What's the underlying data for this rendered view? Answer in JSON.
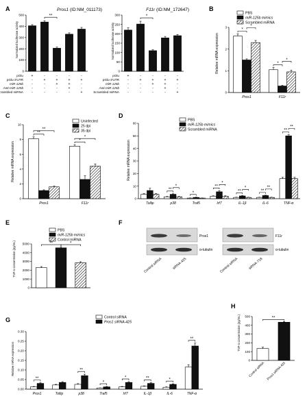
{
  "chart_data": [
    {
      "panel": "A",
      "type": "bar",
      "title_gene": "Pros1",
      "title_id": "(ID:NM_011173)",
      "ylabel": "Normalized luciferase activity",
      "ylim": [
        0,
        500
      ],
      "yticks": [
        0,
        100,
        200,
        300,
        400,
        500
      ],
      "values": [
        405,
        438,
        205,
        330,
        375
      ],
      "errors": [
        10,
        12,
        10,
        12,
        15
      ],
      "row_labels": [
        "pGlu",
        "pGlu-3'UTR",
        "miR-125b",
        "Anti-miR-125b",
        "Scrambled miRNA"
      ],
      "matrix": [
        [
          "+",
          "-",
          "-",
          "-",
          "-"
        ],
        [
          "-",
          "+",
          "+",
          "+",
          "+"
        ],
        [
          "-",
          "-",
          "+",
          "+",
          "-"
        ],
        [
          "-",
          "-",
          "-",
          "+",
          "-"
        ],
        [
          "-",
          "-",
          "-",
          "-",
          "+"
        ]
      ],
      "sig": [
        {
          "from": 1,
          "to": 2,
          "label": "**"
        }
      ]
    },
    {
      "panel": "",
      "type": "bar",
      "title_gene": "F11r",
      "title_id": "(ID:NM_172647)",
      "ylabel": "Normalized luciferase activity",
      "ylim": [
        0,
        300
      ],
      "yticks": [
        0,
        50,
        100,
        150,
        200,
        250,
        300
      ],
      "values": [
        220,
        252,
        110,
        178,
        190
      ],
      "errors": [
        12,
        15,
        5,
        8,
        6
      ],
      "row_labels": [
        "pGlu",
        "pGlu-3'UTR",
        "miR-125b",
        "Anti-miR-125b",
        "Scrambled miRNA"
      ],
      "matrix": [
        [
          "+",
          "-",
          "-",
          "-",
          "-"
        ],
        [
          "-",
          "+",
          "+",
          "+",
          "+"
        ],
        [
          "-",
          "-",
          "+",
          "+",
          "-"
        ],
        [
          "-",
          "-",
          "-",
          "+",
          "-"
        ],
        [
          "-",
          "-",
          "-",
          "-",
          "+"
        ]
      ],
      "sig": [
        {
          "from": 1,
          "to": 2,
          "label": "*"
        }
      ]
    },
    {
      "panel": "B",
      "type": "bar",
      "ylabel": "Relative mRNA expression",
      "ylim": [
        0,
        3
      ],
      "yticks": [
        0,
        1,
        2,
        3
      ],
      "categories": [
        "Pros1",
        "F11r"
      ],
      "series": [
        {
          "name": "PBS",
          "values": [
            2.6,
            1.05
          ],
          "errors": [
            0.1,
            0.1
          ]
        },
        {
          "name": "miR-125b mimics",
          "values": [
            1.5,
            0.3
          ],
          "errors": [
            0.05,
            0.03
          ]
        },
        {
          "name": "Scrambled miRNA",
          "values": [
            2.3,
            0.95
          ],
          "errors": [
            0.1,
            0.08
          ]
        }
      ],
      "sig": [
        {
          "cat": 0,
          "from": 0,
          "to": 1,
          "label": "*",
          "level": 0
        },
        {
          "cat": 0,
          "from": 1,
          "to": 2,
          "label": "*",
          "level": 1
        },
        {
          "cat": 1,
          "from": 0,
          "to": 1,
          "label": "*",
          "level": 0
        },
        {
          "cat": 1,
          "from": 1,
          "to": 2,
          "label": "*",
          "level": 1
        }
      ]
    },
    {
      "panel": "C",
      "type": "bar",
      "ylabel": "Relative mRNA expression",
      "ylim": [
        0,
        10
      ],
      "yticks": [
        0,
        2,
        4,
        6,
        8,
        10
      ],
      "categories": [
        "Pros1",
        "F11r"
      ],
      "series": [
        {
          "name": "Uninfected",
          "values": [
            8.1,
            7.1
          ],
          "errors": [
            0.25,
            0.2
          ]
        },
        {
          "name": "25 dpi",
          "values": [
            1.1,
            2.6
          ],
          "errors": [
            0.1,
            0.5
          ]
        },
        {
          "name": "35 dpi",
          "values": [
            1.6,
            4.4
          ],
          "errors": [
            0.1,
            0.3
          ]
        }
      ],
      "sig": [
        {
          "cat": 0,
          "from": 0,
          "to": 1,
          "label": "**",
          "level": 0
        },
        {
          "cat": 0,
          "from": 0,
          "to": 2,
          "label": "**",
          "level": 1
        },
        {
          "cat": 1,
          "from": 0,
          "to": 1,
          "label": "*",
          "level": 0
        },
        {
          "cat": 1,
          "from": 0,
          "to": 2,
          "label": "*",
          "level": 1
        }
      ]
    },
    {
      "panel": "D",
      "type": "bar",
      "ylabel": "Relative mRNA expression",
      "ylim": [
        0,
        60
      ],
      "yticks": [
        0,
        10,
        20,
        30,
        40,
        50,
        60
      ],
      "categories": [
        "Tollip",
        "p38",
        "Traf5",
        "Irf7",
        "IL-1β",
        "IL-6",
        "TNF-α"
      ],
      "series": [
        {
          "name": "PBS",
          "values": [
            3.5,
            1.5,
            0.5,
            2,
            1,
            1,
            16
          ],
          "errors": [
            0.5,
            0.3,
            0.1,
            0.3,
            0.2,
            0.2,
            1
          ]
        },
        {
          "name": "miR-125b mimics",
          "values": [
            6.5,
            3.5,
            1,
            5.5,
            2.2,
            2.5,
            50
          ],
          "errors": [
            1.8,
            0.4,
            0.2,
            0.9,
            0.3,
            0.3,
            1
          ]
        },
        {
          "name": "Scrambled miRNA",
          "values": [
            3.5,
            1.5,
            0.5,
            2,
            1,
            1,
            16
          ],
          "errors": [
            0.5,
            0.3,
            0.1,
            0.3,
            0.2,
            0.2,
            1
          ]
        }
      ],
      "sig": [
        {
          "cat": 1,
          "from": 0,
          "to": 1,
          "label": "**",
          "level": 0
        },
        {
          "cat": 1,
          "from": 1,
          "to": 2,
          "label": "*",
          "level": 1
        },
        {
          "cat": 2,
          "from": 0,
          "to": 1,
          "label": "*",
          "level": 0
        },
        {
          "cat": 3,
          "from": 0,
          "to": 1,
          "label": "**",
          "level": 0
        },
        {
          "cat": 3,
          "from": 1,
          "to": 2,
          "label": "*",
          "level": 1
        },
        {
          "cat": 4,
          "from": 0,
          "to": 1,
          "label": "**",
          "level": 0
        },
        {
          "cat": 4,
          "from": 1,
          "to": 2,
          "label": "*",
          "level": 1
        },
        {
          "cat": 5,
          "from": 0,
          "to": 1,
          "label": "**",
          "level": 0
        },
        {
          "cat": 5,
          "from": 1,
          "to": 2,
          "label": "**",
          "level": 1
        },
        {
          "cat": 6,
          "from": 0,
          "to": 1,
          "label": "**",
          "level": 0
        },
        {
          "cat": 6,
          "from": 1,
          "to": 2,
          "label": "**",
          "level": 1
        }
      ]
    },
    {
      "panel": "E",
      "type": "bar",
      "ylabel": "TNF-α concentration (pg/mL)",
      "ylim": [
        0,
        5000
      ],
      "yticks": [
        0,
        1000,
        2000,
        3000,
        4000,
        5000
      ],
      "series": [
        {
          "name": "PBS",
          "values": [
            2300
          ],
          "errors": [
            120
          ]
        },
        {
          "name": "miR-125b mimics",
          "values": [
            4550
          ],
          "errors": [
            130
          ]
        },
        {
          "name": "Control miRNA",
          "values": [
            2850
          ],
          "errors": [
            120
          ]
        }
      ],
      "sig": [
        {
          "from": 0,
          "to": 1,
          "label": "**"
        },
        {
          "from": 1,
          "to": 2,
          "label": "*"
        }
      ]
    },
    {
      "panel": "G",
      "type": "bar",
      "ylabel": "Relative mRNA expression",
      "ylim": [
        0,
        0.3
      ],
      "yticks": [
        0.0,
        0.05,
        0.1,
        0.15,
        0.2,
        0.25,
        0.3
      ],
      "categories": [
        "Pros1",
        "Tollip",
        "p38",
        "Traf5",
        "Irf7",
        "IL-1β",
        "IL-6",
        "TNF-α"
      ],
      "series": [
        {
          "name": "Control siRNA",
          "values": [
            0.012,
            0.022,
            0.025,
            0.006,
            0.012,
            0.015,
            0.01,
            0.115
          ],
          "errors": [
            0.002,
            0.003,
            0.004,
            0.001,
            0.002,
            0.002,
            0.002,
            0.012
          ]
        },
        {
          "name": "Pros1 siRNA-425",
          "values": [
            0.03,
            0.035,
            0.07,
            0.012,
            0.035,
            0.03,
            0.025,
            0.225
          ],
          "errors": [
            0.003,
            0.004,
            0.008,
            0.002,
            0.004,
            0.004,
            0.003,
            0.015
          ]
        }
      ],
      "sig": [
        {
          "cat": 0,
          "label": "**"
        },
        {
          "cat": 2,
          "label": "**"
        },
        {
          "cat": 3,
          "label": "*"
        },
        {
          "cat": 4,
          "label": "*"
        },
        {
          "cat": 5,
          "label": "**"
        },
        {
          "cat": 6,
          "label": "*"
        },
        {
          "cat": 7,
          "label": "**"
        }
      ]
    },
    {
      "panel": "H",
      "type": "bar",
      "ylabel": "TNF-α concentration (pg/mL)",
      "ylim": [
        0,
        500
      ],
      "yticks": [
        0,
        100,
        200,
        300,
        400,
        500
      ],
      "categories": [
        "Control siRNA",
        "Pros1 siRNA-425"
      ],
      "values": [
        135,
        435
      ],
      "errors": [
        15,
        8
      ],
      "sig": [
        {
          "from": 0,
          "to": 1,
          "label": "**"
        }
      ]
    }
  ],
  "blot_F": {
    "panel": "F",
    "left": {
      "protein": "Pros1",
      "loading": "α-tubulin",
      "lanes": [
        "Control siRNA",
        "siRNA-425"
      ]
    },
    "right": {
      "protein": "F11r",
      "loading": "α-tubulin",
      "lanes": [
        "Control siRNA",
        "siRNA-718"
      ]
    }
  },
  "colors": {
    "white": "#ffffff",
    "black": "#111111",
    "axis": "#000000"
  }
}
